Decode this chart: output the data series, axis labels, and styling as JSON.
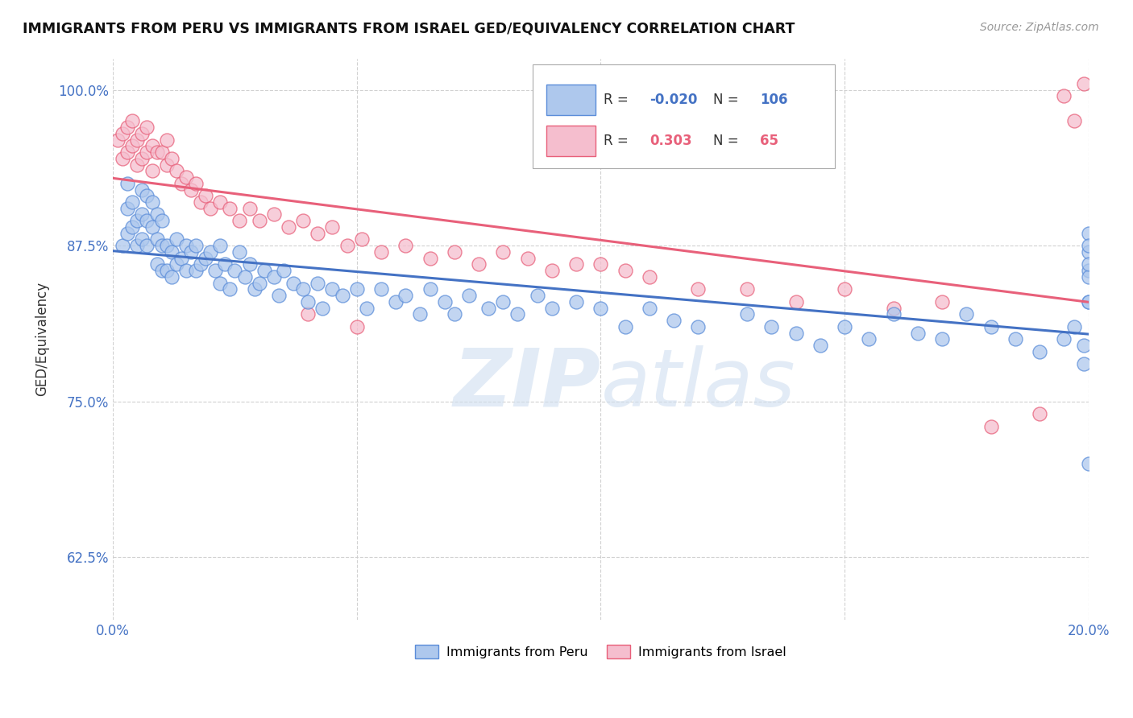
{
  "title": "IMMIGRANTS FROM PERU VS IMMIGRANTS FROM ISRAEL GED/EQUIVALENCY CORRELATION CHART",
  "source_text": "Source: ZipAtlas.com",
  "ylabel": "GED/Equivalency",
  "xlim": [
    0.0,
    0.2
  ],
  "ylim": [
    0.575,
    1.025
  ],
  "yticks": [
    0.625,
    0.75,
    0.875,
    1.0
  ],
  "yticklabels": [
    "62.5%",
    "75.0%",
    "87.5%",
    "100.0%"
  ],
  "peru_R": -0.02,
  "peru_N": 106,
  "israel_R": 0.303,
  "israel_N": 65,
  "peru_color": "#aec8ed",
  "peru_edge_color": "#5b8dd9",
  "israel_color": "#f5bece",
  "israel_edge_color": "#e8607a",
  "peru_line_color": "#4472c4",
  "israel_line_color": "#e8607a",
  "watermark": "ZIPatlas",
  "tick_color": "#4472c4",
  "peru_scatter_x": [
    0.002,
    0.003,
    0.003,
    0.003,
    0.004,
    0.004,
    0.005,
    0.005,
    0.006,
    0.006,
    0.006,
    0.007,
    0.007,
    0.007,
    0.008,
    0.008,
    0.009,
    0.009,
    0.009,
    0.01,
    0.01,
    0.01,
    0.011,
    0.011,
    0.012,
    0.012,
    0.013,
    0.013,
    0.014,
    0.015,
    0.015,
    0.016,
    0.017,
    0.017,
    0.018,
    0.019,
    0.02,
    0.021,
    0.022,
    0.022,
    0.023,
    0.024,
    0.025,
    0.026,
    0.027,
    0.028,
    0.029,
    0.03,
    0.031,
    0.033,
    0.034,
    0.035,
    0.037,
    0.039,
    0.04,
    0.042,
    0.043,
    0.045,
    0.047,
    0.05,
    0.052,
    0.055,
    0.058,
    0.06,
    0.063,
    0.065,
    0.068,
    0.07,
    0.073,
    0.077,
    0.08,
    0.083,
    0.087,
    0.09,
    0.095,
    0.1,
    0.105,
    0.11,
    0.115,
    0.12,
    0.13,
    0.135,
    0.14,
    0.145,
    0.15,
    0.155,
    0.16,
    0.165,
    0.17,
    0.175,
    0.18,
    0.185,
    0.19,
    0.195,
    0.197,
    0.199,
    0.199,
    0.2,
    0.2,
    0.2,
    0.2,
    0.2,
    0.2,
    0.2,
    0.2,
    0.2
  ],
  "peru_scatter_y": [
    0.875,
    0.925,
    0.905,
    0.885,
    0.91,
    0.89,
    0.895,
    0.875,
    0.92,
    0.9,
    0.88,
    0.915,
    0.895,
    0.875,
    0.91,
    0.89,
    0.9,
    0.88,
    0.86,
    0.875,
    0.895,
    0.855,
    0.875,
    0.855,
    0.87,
    0.85,
    0.88,
    0.86,
    0.865,
    0.875,
    0.855,
    0.87,
    0.855,
    0.875,
    0.86,
    0.865,
    0.87,
    0.855,
    0.875,
    0.845,
    0.86,
    0.84,
    0.855,
    0.87,
    0.85,
    0.86,
    0.84,
    0.845,
    0.855,
    0.85,
    0.835,
    0.855,
    0.845,
    0.84,
    0.83,
    0.845,
    0.825,
    0.84,
    0.835,
    0.84,
    0.825,
    0.84,
    0.83,
    0.835,
    0.82,
    0.84,
    0.83,
    0.82,
    0.835,
    0.825,
    0.83,
    0.82,
    0.835,
    0.825,
    0.83,
    0.825,
    0.81,
    0.825,
    0.815,
    0.81,
    0.82,
    0.81,
    0.805,
    0.795,
    0.81,
    0.8,
    0.82,
    0.805,
    0.8,
    0.82,
    0.81,
    0.8,
    0.79,
    0.8,
    0.81,
    0.795,
    0.78,
    0.83,
    0.855,
    0.87,
    0.885,
    0.85,
    0.86,
    0.875,
    0.83,
    0.7
  ],
  "israel_scatter_x": [
    0.001,
    0.002,
    0.002,
    0.003,
    0.003,
    0.004,
    0.004,
    0.005,
    0.005,
    0.006,
    0.006,
    0.007,
    0.007,
    0.008,
    0.008,
    0.009,
    0.01,
    0.011,
    0.011,
    0.012,
    0.013,
    0.014,
    0.015,
    0.016,
    0.017,
    0.018,
    0.019,
    0.02,
    0.022,
    0.024,
    0.026,
    0.028,
    0.03,
    0.033,
    0.036,
    0.039,
    0.042,
    0.045,
    0.048,
    0.051,
    0.055,
    0.06,
    0.065,
    0.07,
    0.075,
    0.08,
    0.085,
    0.09,
    0.095,
    0.1,
    0.105,
    0.11,
    0.12,
    0.13,
    0.14,
    0.15,
    0.16,
    0.17,
    0.18,
    0.19,
    0.195,
    0.197,
    0.199,
    0.04,
    0.05
  ],
  "israel_scatter_y": [
    0.96,
    0.965,
    0.945,
    0.97,
    0.95,
    0.975,
    0.955,
    0.96,
    0.94,
    0.965,
    0.945,
    0.97,
    0.95,
    0.955,
    0.935,
    0.95,
    0.95,
    0.94,
    0.96,
    0.945,
    0.935,
    0.925,
    0.93,
    0.92,
    0.925,
    0.91,
    0.915,
    0.905,
    0.91,
    0.905,
    0.895,
    0.905,
    0.895,
    0.9,
    0.89,
    0.895,
    0.885,
    0.89,
    0.875,
    0.88,
    0.87,
    0.875,
    0.865,
    0.87,
    0.86,
    0.87,
    0.865,
    0.855,
    0.86,
    0.86,
    0.855,
    0.85,
    0.84,
    0.84,
    0.83,
    0.84,
    0.825,
    0.83,
    0.73,
    0.74,
    0.995,
    0.975,
    1.005,
    0.82,
    0.81
  ]
}
